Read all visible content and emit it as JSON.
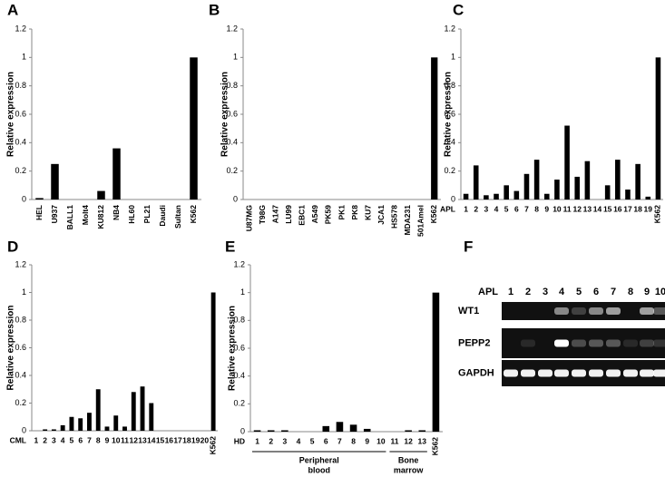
{
  "chart_data": [
    {
      "type": "bar",
      "panel": "A",
      "y_label": "Relative expression",
      "categories": [
        "HEL",
        "U937",
        "BALL1",
        "Molt4",
        "KU812",
        "NB4",
        "HL60",
        "PL21",
        "Daudi",
        "Sultan",
        "K562"
      ],
      "values": [
        0.01,
        0.25,
        0,
        0,
        0.06,
        0.36,
        0,
        0,
        0,
        0,
        1
      ],
      "color": "#000000",
      "ylim": [
        0,
        1.2
      ],
      "yticks": [
        0,
        0.2,
        0.4,
        0.6,
        0.8,
        1,
        1.2
      ]
    },
    {
      "type": "bar",
      "panel": "B",
      "y_label": "Relative expression",
      "categories": [
        "U87MG",
        "T98G",
        "A147",
        "LU99",
        "EBC1",
        "A549",
        "PK59",
        "PK1",
        "PK8",
        "KU7",
        "JCA1",
        "HS578",
        "MDA231",
        "501Amel",
        "K562"
      ],
      "values": [
        0,
        0,
        0,
        0,
        0,
        0,
        0,
        0,
        0,
        0,
        0,
        0,
        0,
        0,
        1
      ],
      "color": "#000000",
      "ylim": [
        0,
        1.2
      ],
      "yticks": [
        0,
        0.2,
        0.4,
        0.6,
        0.8,
        1,
        1.2
      ]
    },
    {
      "type": "bar",
      "panel": "C",
      "y_label": "Relative expression",
      "group_label": "APL",
      "categories": [
        "1",
        "2",
        "3",
        "4",
        "5",
        "6",
        "7",
        "8",
        "9",
        "10",
        "11",
        "12",
        "13",
        "14",
        "15",
        "16",
        "17",
        "18",
        "19",
        "K562"
      ],
      "values": [
        0.04,
        0.24,
        0.03,
        0.04,
        0.1,
        0.06,
        0.18,
        0.28,
        0.04,
        0.14,
        0.52,
        0.16,
        0.27,
        0,
        0.1,
        0.28,
        0.07,
        0.25,
        0.02,
        1
      ],
      "color": "#000000",
      "ylim": [
        0,
        1.2
      ],
      "yticks": [
        0,
        0.2,
        0.4,
        0.6,
        0.8,
        1,
        1.2
      ]
    },
    {
      "type": "bar",
      "panel": "D",
      "y_label": "Relative expression",
      "group_label": "CML",
      "categories": [
        "1",
        "2",
        "3",
        "4",
        "5",
        "6",
        "7",
        "8",
        "9",
        "10",
        "11",
        "12",
        "13",
        "14",
        "15",
        "16",
        "17",
        "18",
        "19",
        "20",
        "K562"
      ],
      "values": [
        0,
        0.01,
        0.01,
        0.04,
        0.1,
        0.09,
        0.13,
        0.3,
        0.03,
        0.11,
        0.03,
        0.28,
        0.32,
        0.2,
        0,
        0,
        0,
        0,
        0,
        0,
        1
      ],
      "color": "#000000",
      "ylim": [
        0,
        1.2
      ],
      "yticks": [
        0,
        0.2,
        0.4,
        0.6,
        0.8,
        1,
        1.2
      ]
    },
    {
      "type": "bar",
      "panel": "E",
      "y_label": "Relative expression",
      "group_label": "HD",
      "categories": [
        "1",
        "2",
        "3",
        "4",
        "5",
        "6",
        "7",
        "8",
        "9",
        "10",
        "11",
        "12",
        "13",
        "K562"
      ],
      "values": [
        0.01,
        0.01,
        0.01,
        0,
        0,
        0.04,
        0.07,
        0.05,
        0.02,
        0,
        0,
        0.01,
        0.01,
        1
      ],
      "color": "#000000",
      "ylim": [
        0,
        1.2
      ],
      "yticks": [
        0,
        0.2,
        0.4,
        0.6,
        0.8,
        1,
        1.2
      ],
      "groups": [
        [
          "Peripheral",
          "blood"
        ],
        [
          "Bone",
          "marrow"
        ]
      ]
    }
  ],
  "gel": {
    "panel": "F",
    "corner_label": "APL",
    "lanes": [
      "1",
      "2",
      "3",
      "4",
      "5",
      "6",
      "7",
      "8",
      "9",
      "10"
    ],
    "rows": [
      "WT1",
      "PEPP2",
      "GAPDH"
    ]
  }
}
